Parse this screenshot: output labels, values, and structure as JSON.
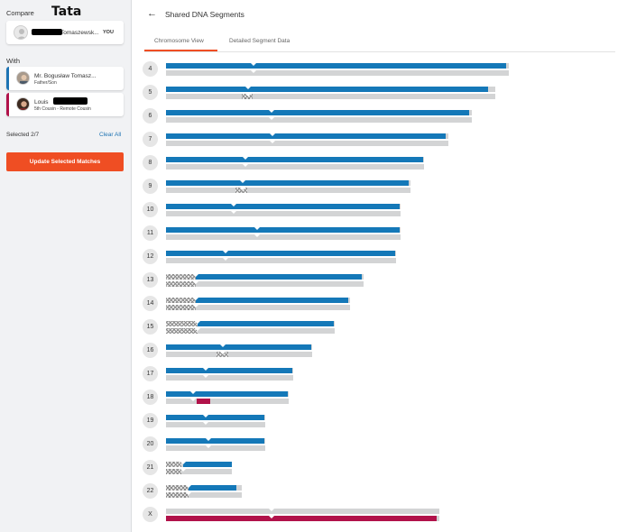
{
  "sidebar": {
    "compare_label": "Compare",
    "handwritten_name": "Tata",
    "you_card": {
      "name": "Tomaszewsk...",
      "you_badge": "YOU"
    },
    "with_label": "With",
    "matches": [
      {
        "name": "Mr. Bogusław Tomasz...",
        "relation": "Father/Son",
        "accent": "#1d73b3"
      },
      {
        "name": "Louis",
        "relation": "5th Cousin - Remote Cousin",
        "accent": "#b1124a"
      }
    ],
    "selected_text": "Selected 2/7",
    "clear_all": "Clear All",
    "update_button": "Update Selected Matches"
  },
  "header": {
    "title": "Shared DNA Segments",
    "tabs": [
      {
        "label": "Chromosome View",
        "active": true
      },
      {
        "label": "Detailed Segment Data",
        "active": false
      }
    ]
  },
  "colors": {
    "accent": "#ef4e23",
    "match1": "#1478b8",
    "match2": "#b1124a",
    "chromosome": "#d3d4d5"
  },
  "chromosomes": [
    {
      "label": "4",
      "len": 380,
      "cent": 97,
      "m1": [
        [
          0,
          377
        ]
      ],
      "m1_hatch": [],
      "m2": [],
      "m2_hatch": []
    },
    {
      "label": "5",
      "len": 365,
      "cent": 91,
      "m1": [
        [
          0,
          357
        ]
      ],
      "m1_hatch": [
        [
          84,
          96
        ]
      ],
      "m2": [],
      "m2_hatch": [
        [
          84,
          96
        ]
      ]
    },
    {
      "label": "6",
      "len": 339,
      "cent": 117,
      "m1": [
        [
          0,
          336
        ]
      ],
      "m1_hatch": [],
      "m2": [],
      "m2_hatch": []
    },
    {
      "label": "7",
      "len": 313,
      "cent": 118,
      "m1": [
        [
          0,
          310
        ]
      ],
      "m1_hatch": [],
      "m2": [],
      "m2_hatch": []
    },
    {
      "label": "8",
      "len": 286,
      "cent": 88,
      "m1": [
        [
          0,
          285
        ]
      ],
      "m1_hatch": [],
      "m2": [],
      "m2_hatch": []
    },
    {
      "label": "9",
      "len": 271,
      "cent": 85,
      "m1": [
        [
          0,
          269
        ]
      ],
      "m1_hatch": [
        [
          77,
          90
        ]
      ],
      "m2": [],
      "m2_hatch": [
        [
          77,
          90
        ]
      ]
    },
    {
      "label": "10",
      "len": 260,
      "cent": 75,
      "m1": [
        [
          0,
          259
        ]
      ],
      "m1_hatch": [],
      "m2": [],
      "m2_hatch": []
    },
    {
      "label": "11",
      "len": 260,
      "cent": 101,
      "m1": [
        [
          0,
          259
        ]
      ],
      "m1_hatch": [],
      "m2": [],
      "m2_hatch": []
    },
    {
      "label": "12",
      "len": 255,
      "cent": 66,
      "m1": [
        [
          0,
          254
        ]
      ],
      "m1_hatch": [],
      "m2": [],
      "m2_hatch": []
    },
    {
      "label": "13",
      "len": 219,
      "cent": 33,
      "m1": [
        [
          33,
          217
        ]
      ],
      "m1_hatch": [
        [
          0,
          33
        ]
      ],
      "m2": [],
      "m2_hatch": [
        [
          0,
          33
        ]
      ]
    },
    {
      "label": "14",
      "len": 204,
      "cent": 33,
      "m1": [
        [
          33,
          202
        ]
      ],
      "m1_hatch": [
        [
          0,
          33
        ]
      ],
      "m2": [],
      "m2_hatch": [
        [
          0,
          33
        ]
      ]
    },
    {
      "label": "15",
      "len": 187,
      "cent": 35,
      "m1": [
        [
          35,
          186
        ]
      ],
      "m1_hatch": [
        [
          0,
          35
        ]
      ],
      "m2": [],
      "m2_hatch": [
        [
          0,
          35
        ]
      ]
    },
    {
      "label": "16",
      "len": 162,
      "cent": 63,
      "m1": [
        [
          0,
          161
        ]
      ],
      "m1_hatch": [
        [
          56,
          69
        ]
      ],
      "m2": [],
      "m2_hatch": [
        [
          56,
          69
        ]
      ]
    },
    {
      "label": "17",
      "len": 141,
      "cent": 44,
      "m1": [
        [
          0,
          140
        ]
      ],
      "m1_hatch": [],
      "m2": [],
      "m2_hatch": []
    },
    {
      "label": "18",
      "len": 136,
      "cent": 30,
      "m1": [
        [
          0,
          135
        ]
      ],
      "m1_hatch": [],
      "m2": [
        [
          34,
          49
        ]
      ],
      "m2_hatch": []
    },
    {
      "label": "19",
      "len": 110,
      "cent": 44,
      "m1": [
        [
          0,
          109
        ]
      ],
      "m1_hatch": [],
      "m2": [],
      "m2_hatch": []
    },
    {
      "label": "20",
      "len": 110,
      "cent": 47,
      "m1": [
        [
          0,
          109
        ]
      ],
      "m1_hatch": [],
      "m2": [],
      "m2_hatch": []
    },
    {
      "label": "21",
      "len": 73,
      "cent": 19,
      "m1": [
        [
          19,
          73
        ]
      ],
      "m1_hatch": [
        [
          0,
          17
        ]
      ],
      "m2": [],
      "m2_hatch": [
        [
          0,
          17
        ]
      ]
    },
    {
      "label": "22",
      "len": 84,
      "cent": 25,
      "m1": [
        [
          25,
          78
        ]
      ],
      "m1_hatch": [
        [
          0,
          25
        ]
      ],
      "m2": [],
      "m2_hatch": [
        [
          0,
          25
        ]
      ]
    },
    {
      "label": "X",
      "len": 303,
      "cent": 117,
      "m1": [],
      "m1_hatch": [],
      "m2": [
        [
          0,
          300
        ]
      ],
      "m2_hatch": []
    }
  ]
}
